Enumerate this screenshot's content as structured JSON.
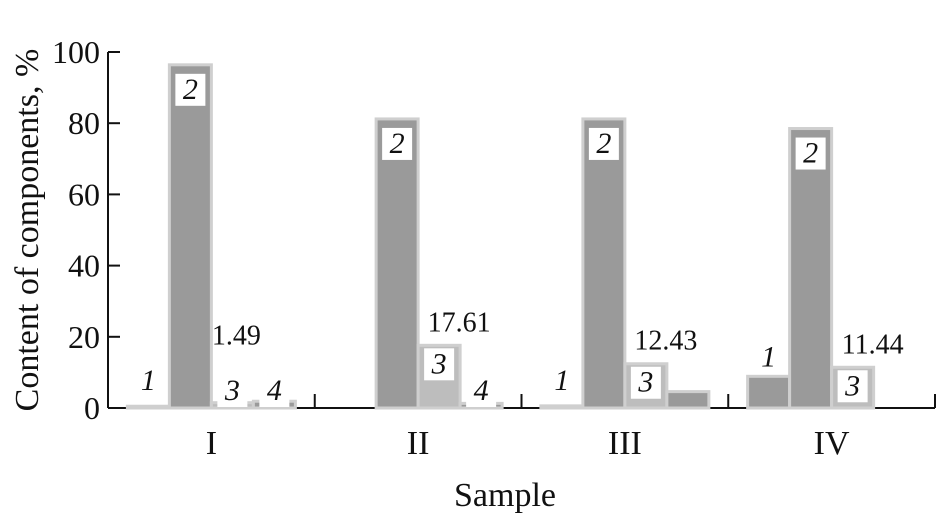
{
  "chart_data": {
    "type": "bar",
    "xlabel": "Sample",
    "ylabel": "Content of components, %",
    "ylim": [
      0,
      100
    ],
    "yticks": [
      "0",
      "20",
      "40",
      "60",
      "80",
      "100"
    ],
    "categories": [
      "I",
      "II",
      "III",
      "IV"
    ],
    "grid": false,
    "legend": "none",
    "colors": {
      "bar": "#9a9a9a",
      "bar_light": "#bdbdbd",
      "bar_edge": "#cfcfcf",
      "axis": "#111111",
      "text": "#111111"
    },
    "series": [
      {
        "name": "1",
        "values": [
          0.5,
          0.0,
          0.6,
          8.9
        ]
      },
      {
        "name": "2",
        "values": [
          96.4,
          81.2,
          81.2,
          78.5
        ]
      },
      {
        "name": "3",
        "values": [
          1.49,
          17.61,
          12.43,
          11.44
        ]
      },
      {
        "name": "4",
        "values": [
          1.9,
          1.3,
          4.6,
          0.0
        ]
      }
    ],
    "bar_labels": [
      [
        {
          "series": 0,
          "text": "1",
          "style": "italic"
        },
        {
          "series": 1,
          "text": "2",
          "style": "boxed"
        },
        {
          "series": 2,
          "text": "3",
          "style": "boxed"
        },
        {
          "series": 3,
          "text": "4",
          "style": "boxed"
        }
      ],
      [
        {
          "series": 1,
          "text": "2",
          "style": "boxed"
        },
        {
          "series": 2,
          "text": "3",
          "style": "boxed"
        },
        {
          "series": 3,
          "text": "4",
          "style": "boxed"
        }
      ],
      [
        {
          "series": 0,
          "text": "1",
          "style": "italic"
        },
        {
          "series": 1,
          "text": "2",
          "style": "boxed"
        },
        {
          "series": 2,
          "text": "3",
          "style": "boxed"
        }
      ],
      [
        {
          "series": 0,
          "text": "1",
          "style": "italic"
        },
        {
          "series": 1,
          "text": "2",
          "style": "boxed"
        },
        {
          "series": 2,
          "text": "3",
          "style": "boxed"
        }
      ]
    ],
    "value_labels": [
      {
        "category": 0,
        "series": 2,
        "text": "1.49"
      },
      {
        "category": 1,
        "series": 2,
        "text": "17.61"
      },
      {
        "category": 2,
        "series": 2,
        "text": "12.43"
      },
      {
        "category": 3,
        "series": 2,
        "text": "11.44"
      }
    ]
  }
}
